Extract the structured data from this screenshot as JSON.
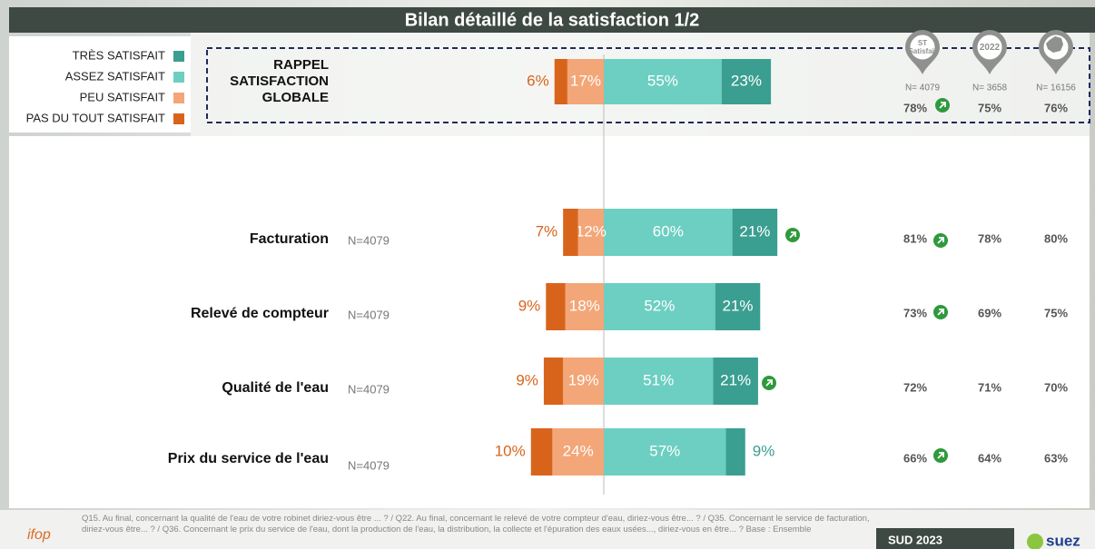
{
  "chart_data": {
    "type": "bar",
    "orientation": "horizontal",
    "title": "Bilan détaillé de la satisfaction 1/2",
    "categories": [
      "RAPPEL SATISFACTION GLOBALE",
      "Facturation",
      "Relevé de compteur",
      "Qualité de l'eau",
      "Prix du service de l'eau"
    ],
    "n_labels": [
      null,
      "N=4079",
      "N=4079",
      "N=4079",
      "N=4079"
    ],
    "series": [
      {
        "name": "TRÈS SATISFAIT",
        "color": "#3a9e90",
        "side": "right",
        "values": [
          23,
          21,
          21,
          21,
          9
        ],
        "value_labels": [
          "23%",
          "21%",
          "21%",
          "21%",
          "9%"
        ]
      },
      {
        "name": "ASSEZ SATISFAIT",
        "color": "#6ccfc1",
        "side": "right",
        "values": [
          55,
          60,
          52,
          51,
          57
        ],
        "value_labels": [
          "55%",
          "60%",
          "52%",
          "51%",
          "57%"
        ]
      },
      {
        "name": "PEU SATISFAIT",
        "color": "#f3a678",
        "side": "left",
        "values": [
          17,
          12,
          18,
          19,
          24
        ],
        "value_labels": [
          "17%",
          "12%",
          "18%",
          "19%",
          "24%"
        ]
      },
      {
        "name": "PAS DU TOUT SATISFAIT",
        "color": "#d8641c",
        "side": "left",
        "values": [
          6,
          7,
          9,
          9,
          10
        ],
        "value_labels": [
          "6%",
          "7%",
          "9%",
          "9%",
          "10%"
        ]
      }
    ],
    "comparison": [
      {
        "header": [
          "ST",
          "Satisfait"
        ],
        "n": "N= 4079",
        "values": [
          "78%",
          "81%",
          "73%",
          "72%",
          "66%"
        ]
      },
      {
        "header": [
          "2022"
        ],
        "n": "N= 3658",
        "values": [
          "75%",
          "78%",
          "69%",
          "71%",
          "64%"
        ]
      },
      {
        "n": "N= 16156",
        "values": [
          "76%",
          "80%",
          "75%",
          "70%",
          "63%"
        ]
      }
    ]
  },
  "footer": {
    "note": "Q15. Au final, concernant la qualité de l'eau de votre robinet diriez-vous être ... ? / Q22. Au final, concernant le relevé de votre compteur d'eau, diriez-vous être... ? / Q35. Concernant le service de facturation, diriez-vous être... ? / Q36. Concernant le prix du service de l'eau, dont la production de l'eau, la distribution, la collecte et l'épuration des eaux usées..., diriez-vous en être... ? Base : Ensemble",
    "left_logo": "ifop",
    "edition": "SUD 2023",
    "right_logo": "suez"
  }
}
